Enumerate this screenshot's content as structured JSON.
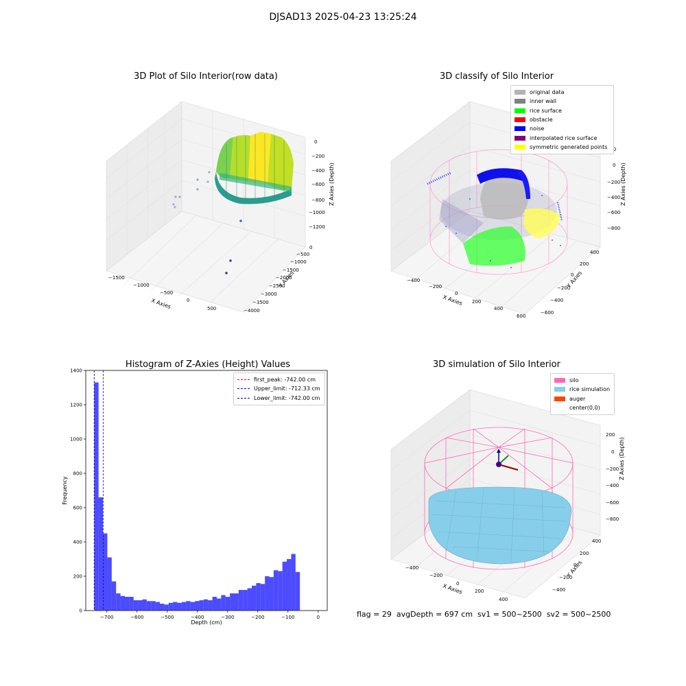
{
  "figure": {
    "suptitle": "DJSAD13 2025-04-23 13:25:24",
    "footer": "flag = 29  avgDepth = 697 cm  sv1 = 500~2500  sv2 = 500~2500"
  },
  "chart_data": [
    {
      "type": "scatter",
      "projection": "3d",
      "title": "3D Plot of Silo Interior(row data)",
      "xlabel": "X Axies",
      "ylabel": "Y Axies",
      "zlabel": "Z Axies (Depth)",
      "xticks": [
        "−1500",
        "−1000",
        "−500",
        "0",
        "500"
      ],
      "yticks": [
        "0",
        "−500",
        "−1000",
        "−1500",
        "−2000",
        "−2500",
        "−3000",
        "−3500",
        "−4000"
      ],
      "zticks": [
        "0",
        "−200",
        "−400",
        "−600",
        "−800",
        "−1000",
        "−1200"
      ],
      "colormap": "viridis"
    },
    {
      "type": "scatter",
      "projection": "3d",
      "title": "3D classify of Silo Interior",
      "xlabel": "X Axies",
      "ylabel": "Y Axies",
      "zlabel": "Z Axies (Depth)",
      "xticks": [
        "−400",
        "−200",
        "0",
        "200",
        "400",
        "600"
      ],
      "yticks": [
        "400",
        "200",
        "0",
        "−200",
        "−400",
        "−600"
      ],
      "zticks": [
        "200",
        "0",
        "−200",
        "−400",
        "−600",
        "−800"
      ],
      "legend": [
        {
          "label": "original data",
          "color": "#b3b3b3"
        },
        {
          "label": "inner wall",
          "color": "#808080"
        },
        {
          "label": "rice surface",
          "color": "#00ff00"
        },
        {
          "label": "obstacle",
          "color": "#ff0000"
        },
        {
          "label": "noise",
          "color": "#0000ff"
        },
        {
          "label": "interpolated rice surface",
          "color": "#800080"
        },
        {
          "label": "symmetric generated points",
          "color": "#ffff00"
        }
      ]
    },
    {
      "type": "bar",
      "title": "Histogram of Z-Axies (Height) Values",
      "xlabel": "Depth (cm)",
      "ylabel": "Frequency",
      "xlim": [
        -770,
        30
      ],
      "ylim": [
        0,
        1400
      ],
      "xticks": [
        -700,
        -600,
        -500,
        -400,
        -300,
        -200,
        -100,
        0
      ],
      "xtick_labels": [
        "−700",
        "−600",
        "−500",
        "−400",
        "−300",
        "−200",
        "−100",
        "0"
      ],
      "yticks": [
        0,
        200,
        400,
        600,
        800,
        1000,
        1200,
        1400
      ],
      "bin_edges": [
        -742,
        -727.5,
        -713,
        -698.5,
        -684,
        -669.5,
        -655,
        -640.5,
        -626,
        -611.5,
        -597,
        -582.5,
        -568,
        -553.5,
        -539,
        -524.5,
        -510,
        -495.5,
        -481,
        -466.5,
        -452,
        -437.5,
        -423,
        -408.5,
        -394,
        -379.5,
        -365,
        -350.5,
        -336,
        -321.5,
        -307,
        -292.5,
        -278,
        -263.5,
        -249,
        -234.5,
        -220,
        -205.5,
        -191,
        -176.5,
        -162,
        -147.5,
        -133,
        -118.5,
        -104,
        -89.5,
        -75,
        -60.5,
        -46,
        -31.5,
        -17
      ],
      "values": [
        1330,
        660,
        450,
        310,
        170,
        100,
        85,
        80,
        80,
        60,
        60,
        65,
        55,
        55,
        50,
        40,
        35,
        45,
        50,
        45,
        50,
        55,
        50,
        55,
        60,
        65,
        60,
        80,
        70,
        90,
        80,
        100,
        100,
        120,
        120,
        130,
        145,
        160,
        155,
        200,
        195,
        235,
        230,
        285,
        300,
        330,
        225,
        0,
        0,
        0
      ],
      "bar_color": "#0000ff",
      "bar_alpha": 0.7,
      "lines": [
        {
          "label": "first_peak: -742.00 cm",
          "x": -742.0,
          "color": "#ff0000"
        },
        {
          "label": "Upper_limit: -712.33 cm",
          "x": -712.33,
          "color": "#0000cd"
        },
        {
          "label": "Lower_limit: -742.00 cm",
          "x": -742.0,
          "color": "#0000cd"
        }
      ],
      "legend_position": "top-right"
    },
    {
      "type": "scatter",
      "projection": "3d",
      "title": "3D simulation of Silo Interior",
      "xlabel": "X Axies",
      "ylabel": "Y Axies",
      "zlabel": "Z Axies (Depth)",
      "xticks": [
        "−400",
        "−200",
        "0",
        "200",
        "400"
      ],
      "yticks": [
        "400",
        "200",
        "0",
        "−200",
        "−400"
      ],
      "zticks": [
        "200",
        "0",
        "−200",
        "−400",
        "−600",
        "−800"
      ],
      "legend": [
        {
          "label": "silo",
          "color": "#ff69b4"
        },
        {
          "label": "rice simulation",
          "color": "#87ceeb"
        },
        {
          "label": "auger",
          "color": "#ff4500"
        },
        {
          "label": "center(0,0)",
          "color": "#ffffff"
        }
      ]
    }
  ]
}
